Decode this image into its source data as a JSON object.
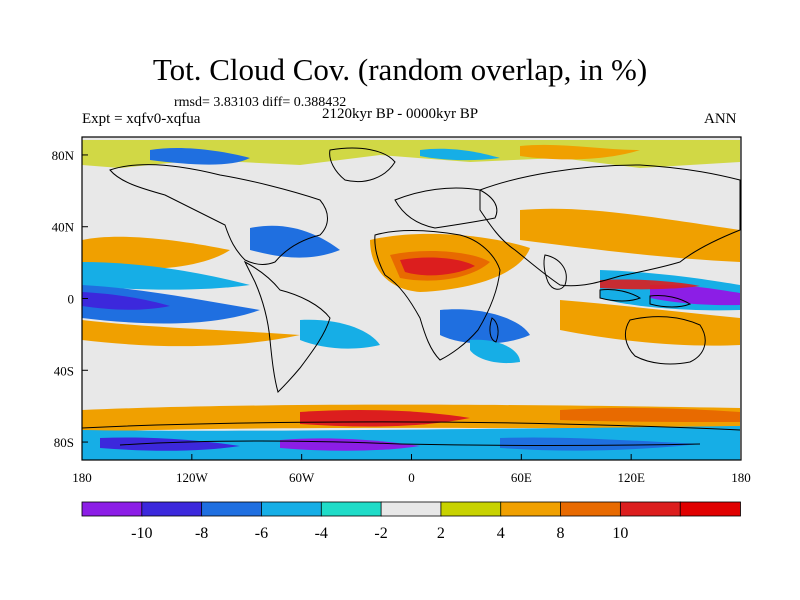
{
  "title": "Tot. Cloud Cov. (random overlap, in %)",
  "stats_line": "rmsd= 3.83103 diff= 0.388432",
  "experiment": "Expt = xqfv0-xqfua",
  "period": "2120kyr BP - 0000kyr BP",
  "season": "ANN",
  "lon_ticks": [
    "180",
    "120W",
    "60W",
    "0",
    "60E",
    "120E",
    "180"
  ],
  "lat_ticks": [
    "80N",
    "40N",
    "0",
    "40S",
    "80S"
  ],
  "colorbar": {
    "labels": [
      "-10",
      "-8",
      "-6",
      "-4",
      "-2",
      "2",
      "4",
      "8",
      "10"
    ],
    "colors": [
      "#8c1ee6",
      "#3c28dc",
      "#1f6fe0",
      "#16aee6",
      "#1fdcc8",
      "#e8e8e8",
      "#c8d200",
      "#f0a000",
      "#e86a00",
      "#dc1e1e",
      "#e00000"
    ]
  },
  "palette": {
    "neutral": "#e8e8e8",
    "land": "#000000",
    "ocean_bg": "#ffffff"
  },
  "map_fields": [
    {
      "name": "n-africa-arabia-positive",
      "value": 10
    },
    {
      "name": "west-pacific-negative",
      "value": -10
    },
    {
      "name": "southern-ocean-mixed",
      "value": 8
    }
  ]
}
